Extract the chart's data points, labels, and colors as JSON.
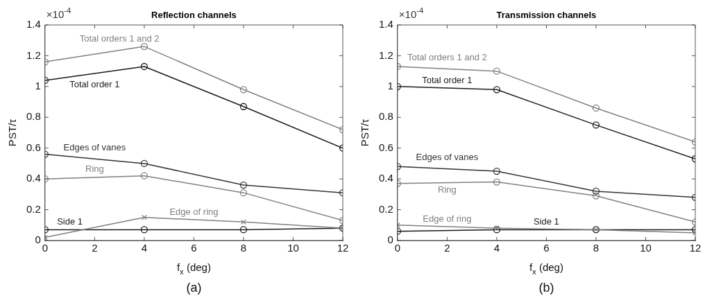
{
  "chart_data": [
    {
      "type": "line",
      "title": "Reflection channels",
      "xlabel": "f$_{x}$ (deg)",
      "ylabel": "PST/τ",
      "xlim": [
        0,
        12
      ],
      "xticks": [
        0,
        2,
        4,
        6,
        8,
        10,
        12
      ],
      "ylim": [
        0,
        1.4
      ],
      "yticks": [
        0,
        0.2,
        0.4,
        0.6,
        0.8,
        1,
        1.2,
        1.4
      ],
      "grid": false,
      "legend": false,
      "marker": "circle",
      "annotations": [
        "×10$^{-4}$",
        "(a)"
      ],
      "x": [
        0,
        4,
        8,
        12
      ],
      "series": [
        {
          "name": "Total orders 1 and 2",
          "color": "#808080",
          "values": [
            1.16,
            1.26,
            0.98,
            0.72
          ]
        },
        {
          "name": "Total order 1",
          "color": "#1a1a1a",
          "values": [
            1.04,
            1.13,
            0.87,
            0.6
          ]
        },
        {
          "name": "Edges of vanes",
          "color": "#333333",
          "values": [
            0.56,
            0.5,
            0.36,
            0.31
          ]
        },
        {
          "name": "Ring",
          "color": "#808080",
          "values": [
            0.4,
            0.42,
            0.31,
            0.13
          ]
        },
        {
          "name": "Edge of ring",
          "color": "#808080",
          "marker": "cross",
          "values": [
            0.02,
            0.15,
            0.12,
            0.08
          ]
        },
        {
          "name": "Side 1",
          "color": "#1a1a1a",
          "values": [
            0.07,
            0.07,
            0.07,
            0.08
          ]
        }
      ]
    },
    {
      "type": "line",
      "title": "Transmission channels",
      "xlabel": "f$_{x}$ (deg)",
      "ylabel": "PST/τ",
      "xlim": [
        0,
        12
      ],
      "xticks": [
        0,
        2,
        4,
        6,
        8,
        10,
        12
      ],
      "ylim": [
        0,
        1.4
      ],
      "yticks": [
        0,
        0.2,
        0.4,
        0.6,
        0.8,
        1,
        1.2,
        1.4
      ],
      "grid": false,
      "legend": false,
      "marker": "circle",
      "annotations": [
        "×10$^{-4}$",
        "(b)"
      ],
      "x": [
        0,
        4,
        8,
        12
      ],
      "series": [
        {
          "name": "Total orders 1 and 2",
          "color": "#808080",
          "values": [
            1.13,
            1.1,
            0.86,
            0.64
          ]
        },
        {
          "name": "Total order 1",
          "color": "#1a1a1a",
          "values": [
            1.0,
            0.98,
            0.75,
            0.53
          ]
        },
        {
          "name": "Edges of vanes",
          "color": "#333333",
          "values": [
            0.48,
            0.45,
            0.32,
            0.28
          ]
        },
        {
          "name": "Ring",
          "color": "#808080",
          "values": [
            0.37,
            0.38,
            0.29,
            0.12
          ]
        },
        {
          "name": "Edge of ring",
          "color": "#808080",
          "marker": "cross",
          "values": [
            0.1,
            0.08,
            0.07,
            0.05
          ]
        },
        {
          "name": "Side 1",
          "color": "#1a1a1a",
          "values": [
            0.06,
            0.07,
            0.07,
            0.07
          ]
        }
      ]
    }
  ]
}
